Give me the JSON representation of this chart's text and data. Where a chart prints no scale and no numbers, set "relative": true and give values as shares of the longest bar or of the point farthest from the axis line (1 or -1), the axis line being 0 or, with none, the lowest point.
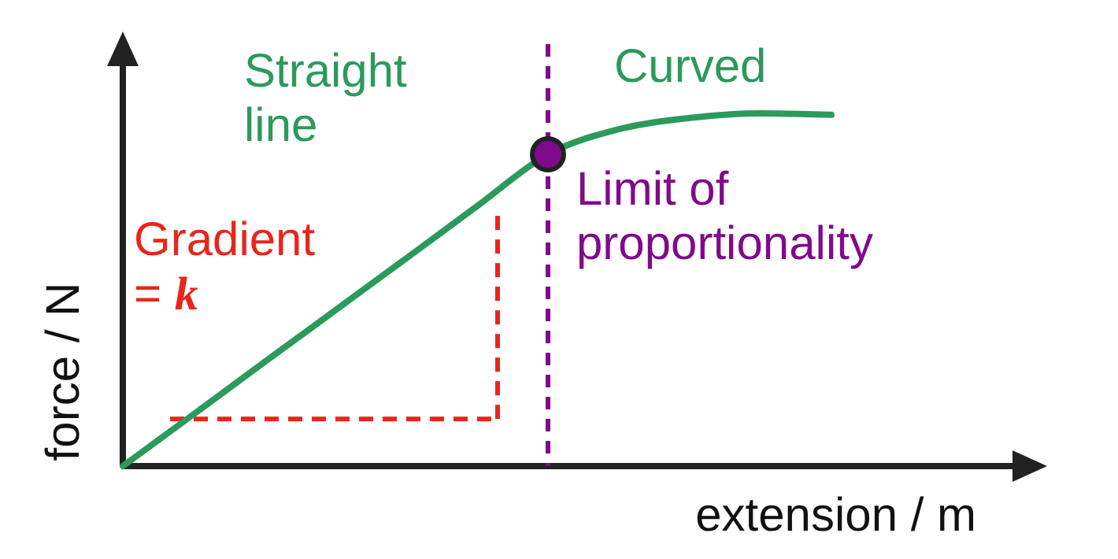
{
  "chart_data": {
    "type": "line",
    "relative": true,
    "xlabel": "extension / m",
    "ylabel": "force / N",
    "categories": [
      null,
      null,
      null,
      null,
      null,
      null,
      null,
      null,
      null,
      null,
      null
    ],
    "series": [
      {
        "color": "#2b9a5b",
        "values": [
          0,
          0.147,
          0.295,
          0.442,
          0.589,
          0.737,
          0.884,
          0.955,
          0.987,
          1,
          0.996
        ]
      }
    ],
    "annotations": [
      "Straight\nline",
      "Curved",
      "Gradient\n= k",
      "Limit of\nproportionality"
    ],
    "line_style": "solid"
  }
}
